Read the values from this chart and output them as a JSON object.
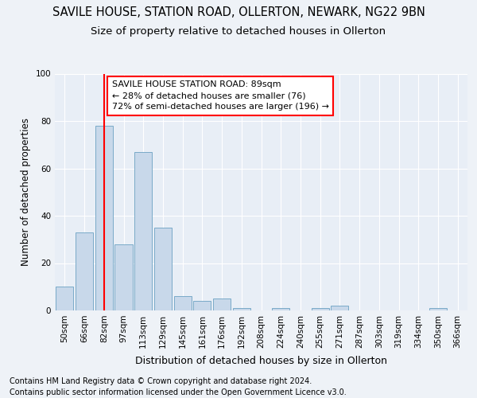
{
  "title1": "SAVILE HOUSE, STATION ROAD, OLLERTON, NEWARK, NG22 9BN",
  "title2": "Size of property relative to detached houses in Ollerton",
  "xlabel": "Distribution of detached houses by size in Ollerton",
  "ylabel": "Number of detached properties",
  "categories": [
    "50sqm",
    "66sqm",
    "82sqm",
    "97sqm",
    "113sqm",
    "129sqm",
    "145sqm",
    "161sqm",
    "176sqm",
    "192sqm",
    "208sqm",
    "224sqm",
    "240sqm",
    "255sqm",
    "271sqm",
    "287sqm",
    "303sqm",
    "319sqm",
    "334sqm",
    "350sqm",
    "366sqm"
  ],
  "values": [
    10,
    33,
    78,
    28,
    67,
    35,
    6,
    4,
    5,
    1,
    0,
    1,
    0,
    1,
    2,
    0,
    0,
    0,
    0,
    1,
    0
  ],
  "bar_color": "#c8d8ea",
  "bar_edge_color": "#7aaac8",
  "red_line_x": 2,
  "annotation_text": "SAVILE HOUSE STATION ROAD: 89sqm\n← 28% of detached houses are smaller (76)\n72% of semi-detached houses are larger (196) →",
  "annotation_box_color": "white",
  "annotation_box_edge": "red",
  "footer1": "Contains HM Land Registry data © Crown copyright and database right 2024.",
  "footer2": "Contains public sector information licensed under the Open Government Licence v3.0.",
  "bg_color": "#eef2f7",
  "plot_bg_color": "#e8eef6",
  "grid_color": "white",
  "ylim": [
    0,
    100
  ],
  "title1_fontsize": 10.5,
  "title2_fontsize": 9.5,
  "xlabel_fontsize": 9,
  "ylabel_fontsize": 8.5,
  "tick_fontsize": 7.5,
  "annotation_fontsize": 8,
  "footer_fontsize": 7
}
